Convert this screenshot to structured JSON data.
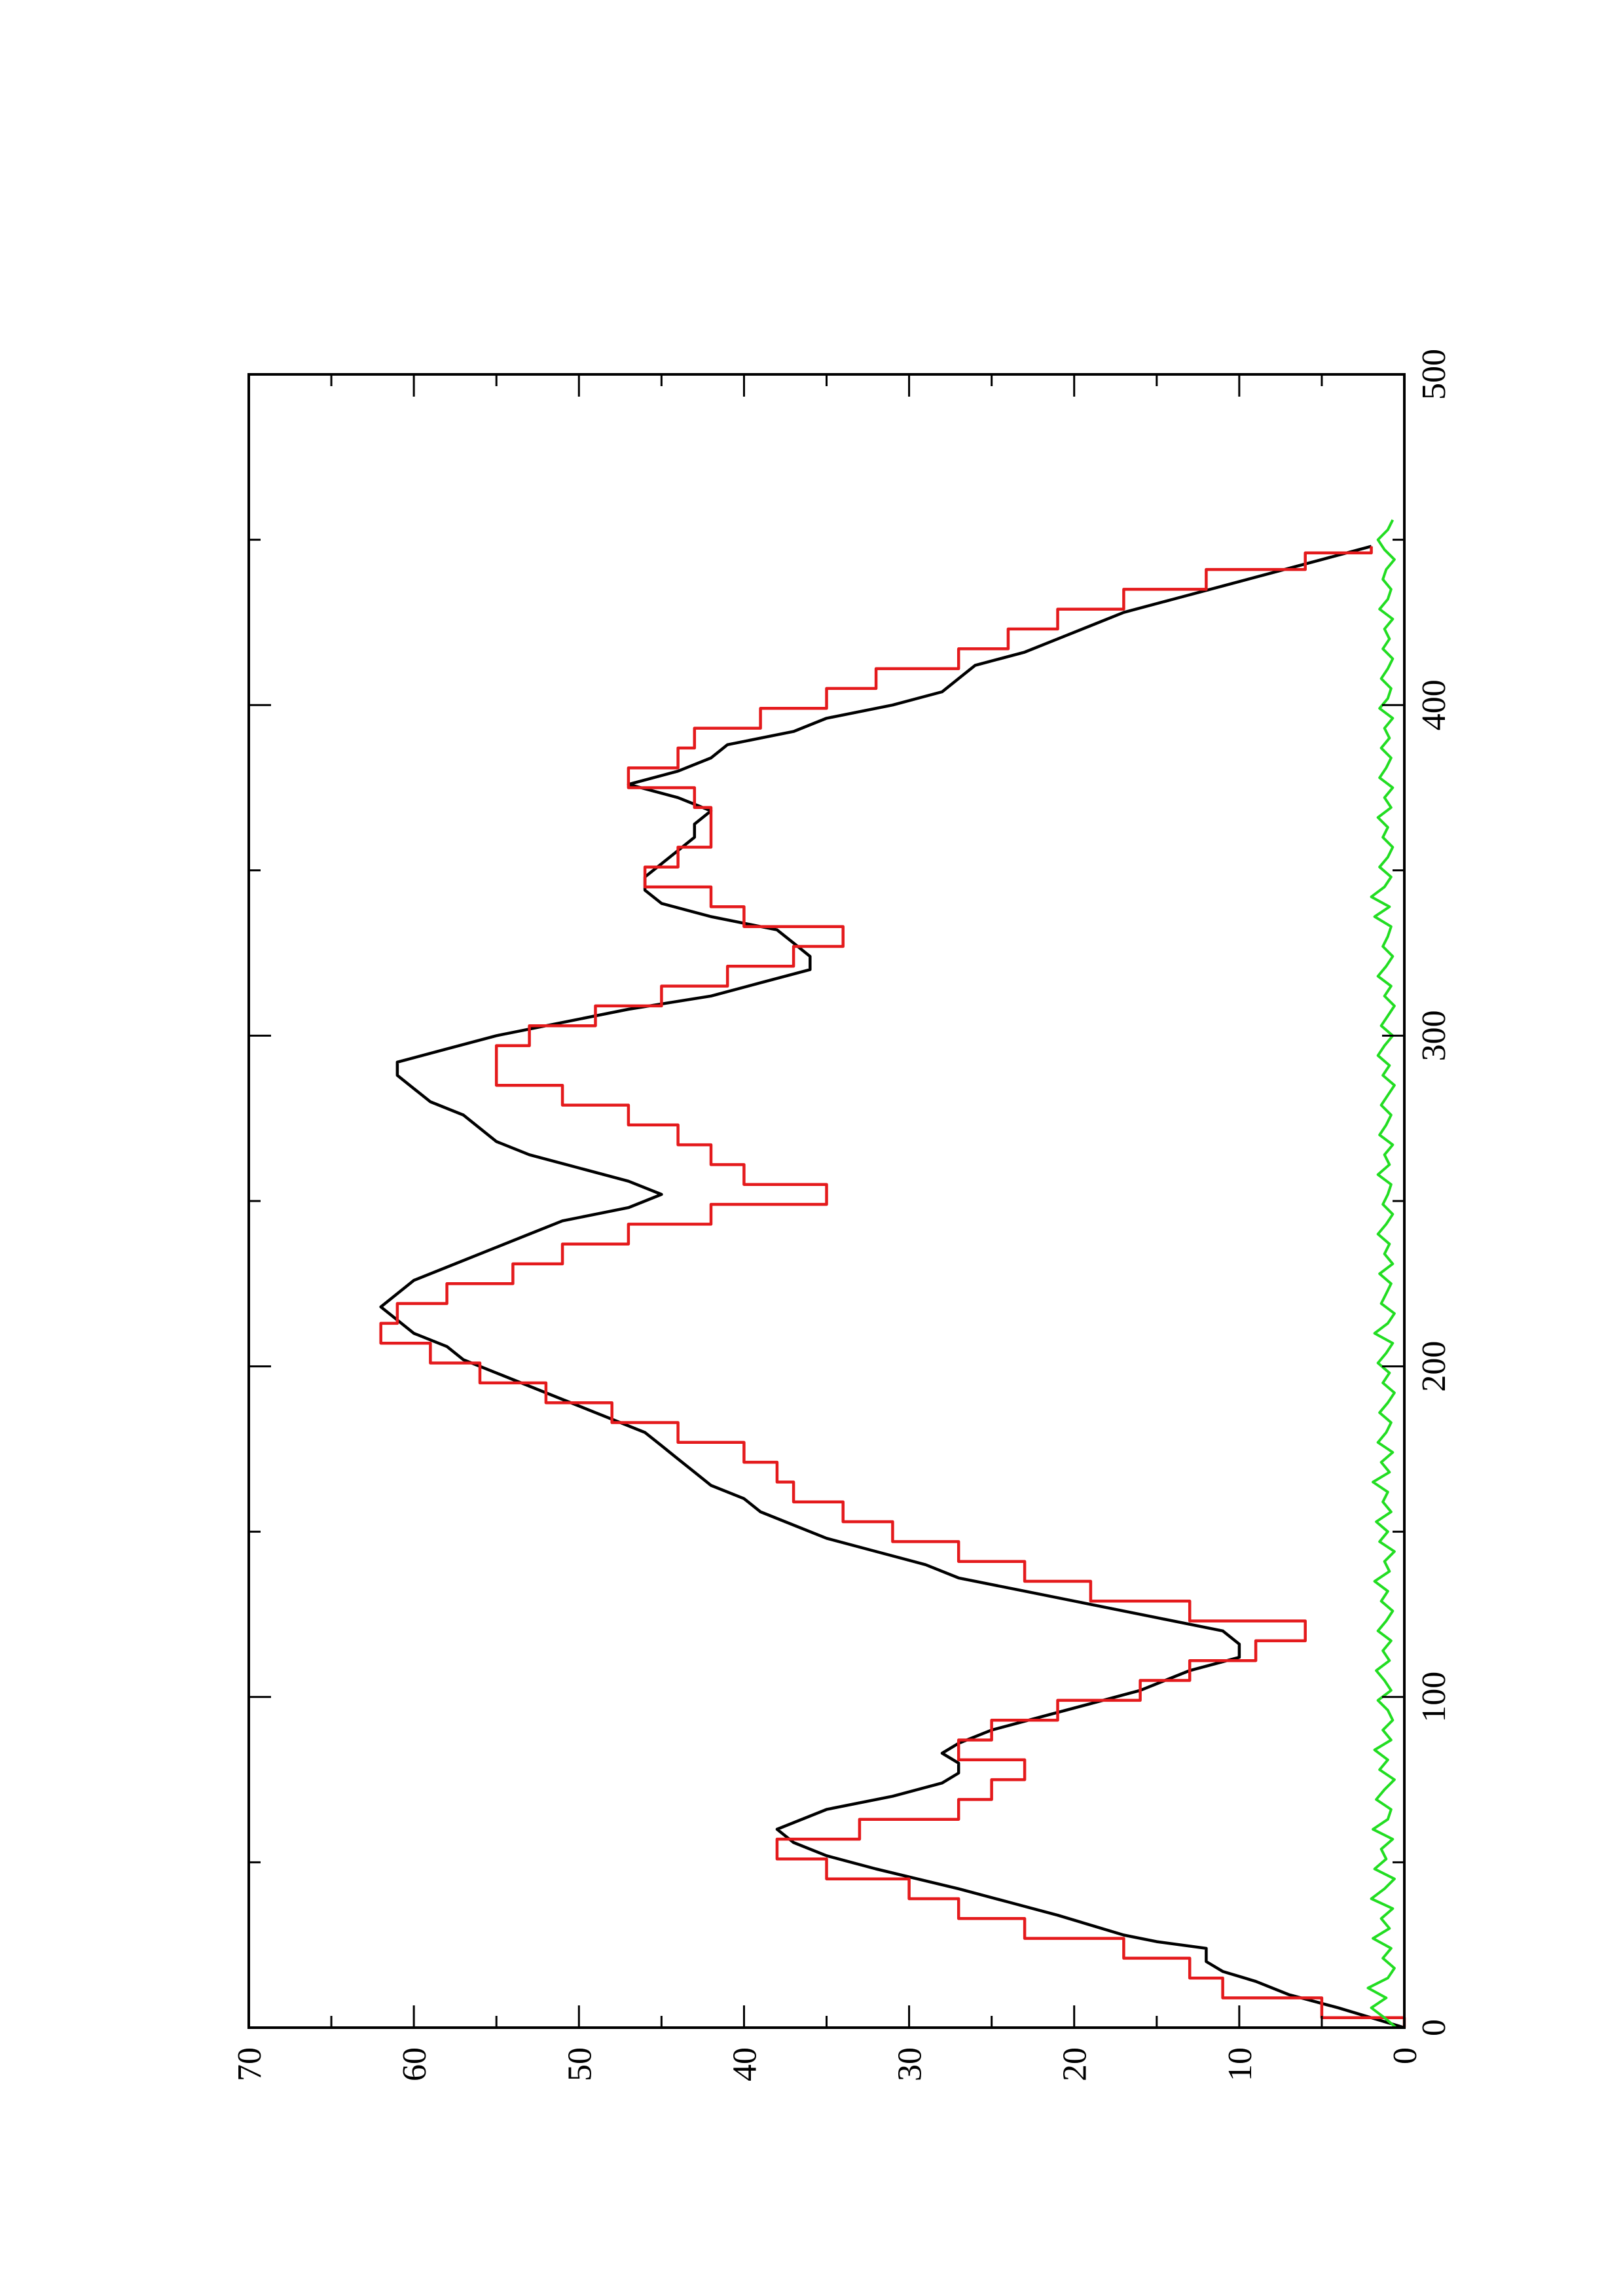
{
  "chart_data": {
    "type": "line",
    "title": "",
    "xlabel": "",
    "ylabel": "",
    "orientation": "rotated 90 degrees counter-clockwise",
    "xlim": [
      0,
      500
    ],
    "ylim": [
      0,
      70
    ],
    "x_ticks": [
      0,
      100,
      200,
      300,
      400,
      500
    ],
    "x_minor_ticks": [
      50,
      150,
      250,
      350,
      450
    ],
    "y_ticks": [
      0,
      10,
      20,
      30,
      40,
      50,
      60,
      70
    ],
    "y_minor_ticks": [
      5,
      15,
      25,
      35,
      45,
      55,
      65
    ],
    "x_tick_labels": [
      "0",
      "100",
      "200",
      "300",
      "400",
      "500"
    ],
    "y_tick_labels": [
      "0",
      "10",
      "20",
      "30",
      "40",
      "50",
      "60",
      "70"
    ],
    "grid": false,
    "legend": "none",
    "series": [
      {
        "color": "#000000",
        "style": "smooth",
        "x": [
          0,
          6,
          10,
          14,
          17,
          20,
          24,
          26,
          28,
          34,
          38,
          42,
          48,
          52,
          56,
          60,
          66,
          70,
          74,
          77,
          80,
          83,
          86,
          90,
          94,
          98,
          102,
          108,
          112,
          116,
          120,
          124,
          128,
          132,
          136,
          140,
          144,
          148,
          152,
          156,
          160,
          164,
          168,
          172,
          176,
          180,
          186,
          190,
          194,
          198,
          202,
          206,
          210,
          214,
          218,
          222,
          226,
          230,
          236,
          240,
          244,
          248,
          252,
          256,
          260,
          264,
          268,
          272,
          276,
          280,
          284,
          288,
          292,
          296,
          300,
          304,
          308,
          312,
          316,
          320,
          324,
          328,
          332,
          336,
          340,
          344,
          348,
          352,
          356,
          360,
          364,
          368,
          372,
          376,
          380,
          384,
          388,
          392,
          396,
          400,
          404,
          408,
          412,
          416,
          420,
          424,
          428,
          432,
          436,
          440,
          444,
          448
        ],
        "y": [
          0,
          4,
          7,
          9,
          11,
          12,
          12,
          15,
          17,
          21,
          24,
          27,
          32,
          35,
          37,
          38,
          35,
          31,
          28,
          27,
          27,
          28,
          27,
          25,
          22,
          19,
          16,
          13,
          10,
          10,
          11,
          15,
          19,
          23,
          27,
          29,
          32,
          35,
          37,
          39,
          40,
          42,
          43,
          44,
          45,
          46,
          49,
          51,
          53,
          55,
          57,
          58,
          60,
          61,
          62,
          61,
          60,
          58,
          55,
          53,
          51,
          47,
          45,
          47,
          50,
          53,
          55,
          56,
          57,
          59,
          60,
          61,
          61,
          58,
          55,
          51,
          47,
          42,
          39,
          36,
          36,
          37,
          38,
          42,
          45,
          46,
          46,
          45,
          44,
          43,
          43,
          42,
          44,
          47,
          44,
          42,
          41,
          37,
          35,
          31,
          28,
          27,
          26,
          23,
          21,
          19,
          17,
          14,
          11,
          8,
          5,
          2
        ]
      },
      {
        "color": "#e41a1c",
        "style": "step",
        "x": [
          0,
          6,
          12,
          18,
          24,
          30,
          36,
          42,
          48,
          54,
          60,
          66,
          72,
          78,
          84,
          90,
          96,
          102,
          108,
          114,
          120,
          126,
          132,
          138,
          144,
          150,
          156,
          162,
          168,
          174,
          180,
          186,
          192,
          198,
          204,
          210,
          216,
          222,
          228,
          234,
          240,
          246,
          252,
          258,
          264,
          270,
          276,
          282,
          288,
          294,
          300,
          306,
          312,
          318,
          324,
          330,
          336,
          342,
          348,
          354,
          360,
          366,
          372,
          378,
          384,
          390,
          396,
          402,
          408,
          414,
          420,
          426,
          432,
          438,
          444,
          448
        ],
        "y": [
          0,
          5,
          11,
          13,
          17,
          23,
          27,
          30,
          35,
          38,
          33,
          27,
          25,
          23,
          27,
          25,
          21,
          16,
          13,
          9,
          6,
          13,
          19,
          23,
          27,
          31,
          34,
          37,
          38,
          40,
          44,
          48,
          52,
          56,
          59,
          62,
          61,
          58,
          54,
          51,
          47,
          42,
          35,
          40,
          42,
          44,
          47,
          51,
          55,
          55,
          53,
          49,
          45,
          41,
          37,
          34,
          40,
          42,
          46,
          44,
          42,
          42,
          43,
          47,
          44,
          43,
          39,
          35,
          32,
          27,
          24,
          21,
          17,
          12,
          6,
          2
        ]
      },
      {
        "color": "#22dd22",
        "style": "noise",
        "x": [
          0,
          3,
          6,
          9,
          12,
          15,
          18,
          21,
          24,
          27,
          30,
          33,
          36,
          39,
          42,
          45,
          48,
          51,
          54,
          57,
          60,
          63,
          66,
          69,
          72,
          75,
          78,
          81,
          84,
          87,
          90,
          93,
          96,
          99,
          102,
          105,
          108,
          111,
          114,
          117,
          120,
          123,
          126,
          129,
          132,
          135,
          138,
          141,
          144,
          147,
          150,
          153,
          156,
          159,
          162,
          165,
          168,
          171,
          174,
          177,
          180,
          183,
          186,
          189,
          192,
          195,
          198,
          201,
          204,
          207,
          210,
          213,
          216,
          219,
          222,
          225,
          228,
          231,
          234,
          237,
          240,
          243,
          246,
          249,
          252,
          255,
          258,
          261,
          264,
          267,
          270,
          273,
          276,
          279,
          282,
          285,
          288,
          291,
          294,
          297,
          300,
          303,
          306,
          309,
          312,
          315,
          318,
          321,
          324,
          327,
          330,
          333,
          336,
          339,
          342,
          345,
          348,
          351,
          354,
          357,
          360,
          363,
          366,
          369,
          372,
          375,
          378,
          381,
          384,
          387,
          390,
          393,
          396,
          399,
          402,
          405,
          408,
          411,
          414,
          417,
          420,
          423,
          426,
          429,
          432,
          435,
          438,
          441,
          444,
          447,
          450,
          453,
          456
        ],
        "y": [
          0.5,
          1.2,
          2.0,
          1.1,
          2.2,
          1.0,
          0.6,
          1.3,
          0.8,
          1.9,
          0.9,
          1.4,
          0.7,
          2.0,
          1.2,
          0.6,
          1.8,
          1.1,
          1.4,
          0.7,
          1.9,
          1.0,
          0.8,
          1.7,
          1.2,
          0.6,
          1.5,
          1.0,
          1.8,
          0.8,
          1.3,
          0.7,
          1.0,
          1.6,
          0.8,
          1.2,
          1.7,
          0.9,
          1.3,
          0.8,
          1.6,
          1.1,
          0.7,
          1.4,
          1.0,
          1.8,
          0.9,
          1.2,
          0.6,
          1.5,
          1.0,
          1.7,
          0.8,
          1.3,
          1.0,
          1.9,
          0.9,
          1.4,
          0.7,
          1.6,
          1.1,
          0.8,
          1.5,
          1.0,
          0.6,
          1.3,
          0.9,
          1.6,
          1.1,
          0.7,
          1.8,
          1.0,
          0.6,
          1.4,
          1.1,
          0.8,
          1.5,
          0.7,
          1.2,
          0.9,
          1.6,
          1.1,
          0.7,
          1.3,
          1.0,
          0.8,
          1.6,
          0.9,
          1.2,
          0.7,
          1.5,
          1.1,
          0.8,
          1.4,
          1.0,
          0.6,
          1.3,
          0.9,
          1.6,
          1.2,
          0.7,
          1.4,
          1.0,
          0.6,
          1.2,
          0.8,
          1.6,
          1.1,
          0.7,
          1.3,
          1.0,
          0.8,
          1.8,
          0.9,
          2.0,
          1.2,
          0.8,
          1.5,
          1.0,
          0.7,
          1.3,
          1.0,
          1.6,
          0.8,
          1.2,
          0.7,
          1.5,
          1.1,
          0.8,
          1.4,
          0.9,
          1.2,
          0.7,
          1.5,
          1.0,
          0.8,
          1.4,
          1.0,
          0.7,
          1.3,
          0.9,
          1.2,
          0.7,
          1.5,
          1.0,
          0.8,
          1.3,
          1.1,
          0.6,
          1.2,
          1.6,
          1.0,
          0.7
        ]
      }
    ]
  }
}
